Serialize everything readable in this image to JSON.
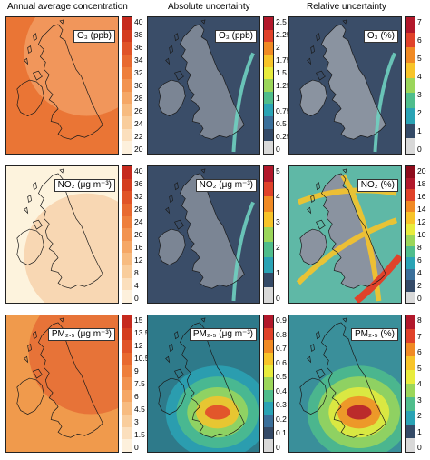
{
  "columns": [
    "Annual average concentration",
    "Absolute uncertainty",
    "Relative uncertainty"
  ],
  "rows": [
    {
      "species": "O3",
      "panels": [
        {
          "label": "O₃ (ppb)",
          "ticks": [
            "40",
            "38",
            "36",
            "34",
            "32",
            "30",
            "28",
            "26",
            "24",
            "22",
            "20"
          ],
          "colors": [
            "#c62a1e",
            "#d43d1f",
            "#e05428",
            "#e86a30",
            "#ee7f3c",
            "#f29350",
            "#f5a766",
            "#f7bb80",
            "#f9cd9c",
            "#fbdfbd",
            "#fdf0dc"
          ],
          "bg": "#ea7535"
        },
        {
          "label": "O₃ (ppb)",
          "ticks": [
            "2.5",
            "2.25",
            "2",
            "1.75",
            "1.5",
            "1.25",
            "1",
            "0.75",
            "0.5",
            "0.25",
            "0"
          ],
          "colors": [
            "#b2182b",
            "#e0422a",
            "#f08a24",
            "#f7c429",
            "#e8ec3d",
            "#9bd65a",
            "#4fbd8c",
            "#2aa3b5",
            "#3a6f9a",
            "#344a67",
            "#d9d9d9"
          ],
          "bg": "#3a4d68"
        },
        {
          "label": "O₃ (%)",
          "ticks": [
            "7",
            "6",
            "5",
            "4",
            "3",
            "2",
            "1",
            "0"
          ],
          "colors": [
            "#b2182b",
            "#e0422a",
            "#f08a24",
            "#f7c429",
            "#9bd65a",
            "#4fbd8c",
            "#2aa3b5",
            "#344a67",
            "#d9d9d9"
          ],
          "bg": "#3a4d68"
        }
      ]
    },
    {
      "species": "NO2",
      "panels": [
        {
          "label": "NO₂ (μg m⁻³)",
          "ticks": [
            "40",
            "36",
            "32",
            "28",
            "24",
            "20",
            "16",
            "12",
            "8",
            "4",
            "0"
          ],
          "colors": [
            "#c62a1e",
            "#d43d1f",
            "#e05428",
            "#e86a30",
            "#ee7f3c",
            "#f29350",
            "#f5a766",
            "#f7bb80",
            "#f9cd9c",
            "#fbdfbd",
            "#fdf0dc"
          ],
          "bg": "#fdf3dd"
        },
        {
          "label": "NO₂ (μg m⁻³)",
          "ticks": [
            "5",
            "4",
            "3",
            "2",
            "1",
            "0"
          ],
          "colors": [
            "#b2182b",
            "#e0422a",
            "#f08a24",
            "#f7c429",
            "#9bd65a",
            "#4fbd8c",
            "#2aa3b5",
            "#344a67",
            "#d9d9d9"
          ],
          "bg": "#3a4d68"
        },
        {
          "label": "NO₂ (%)",
          "ticks": [
            "20",
            "18",
            "16",
            "14",
            "12",
            "10",
            "8",
            "6",
            "4",
            "2",
            "0"
          ],
          "colors": [
            "#8e0c1c",
            "#b2182b",
            "#e0422a",
            "#f08a24",
            "#f7c429",
            "#e8ec3d",
            "#9bd65a",
            "#4fbd8c",
            "#2aa3b5",
            "#3a6f9a",
            "#344a67",
            "#d9d9d9"
          ],
          "bg": "#5fb8a6"
        }
      ]
    },
    {
      "species": "PM2.5",
      "panels": [
        {
          "label": "PM₂.₅ (μg m⁻³)",
          "ticks": [
            "15",
            "13.5",
            "12",
            "10.5",
            "9",
            "7.5",
            "6",
            "4.5",
            "3",
            "1.5",
            "0"
          ],
          "colors": [
            "#c62a1e",
            "#d43d1f",
            "#e05428",
            "#e86a30",
            "#ee7f3c",
            "#f29350",
            "#f5a766",
            "#f7bb80",
            "#f9cd9c",
            "#fbdfbd",
            "#fdf0dc"
          ],
          "bg": "#f09a4c"
        },
        {
          "label": "PM₂.₅ (μg m⁻³)",
          "ticks": [
            "0.9",
            "0.8",
            "0.7",
            "0.6",
            "0.5",
            "0.4",
            "0.3",
            "0.2",
            "0.1",
            "0"
          ],
          "colors": [
            "#b2182b",
            "#e0422a",
            "#f08a24",
            "#f7c429",
            "#e8ec3d",
            "#9bd65a",
            "#4fbd8c",
            "#2aa3b5",
            "#3a6f9a",
            "#344a67",
            "#d9d9d9"
          ],
          "bg": "#2e7a8a"
        },
        {
          "label": "PM₂.₅ (%)",
          "ticks": [
            "8",
            "7",
            "6",
            "5",
            "4",
            "3",
            "2",
            "1",
            "0"
          ],
          "colors": [
            "#b2182b",
            "#e0422a",
            "#f08a24",
            "#f7c429",
            "#e8ec3d",
            "#9bd65a",
            "#4fbd8c",
            "#2aa3b5",
            "#344a67",
            "#d9d9d9"
          ],
          "bg": "#3a8f9a"
        }
      ]
    }
  ]
}
